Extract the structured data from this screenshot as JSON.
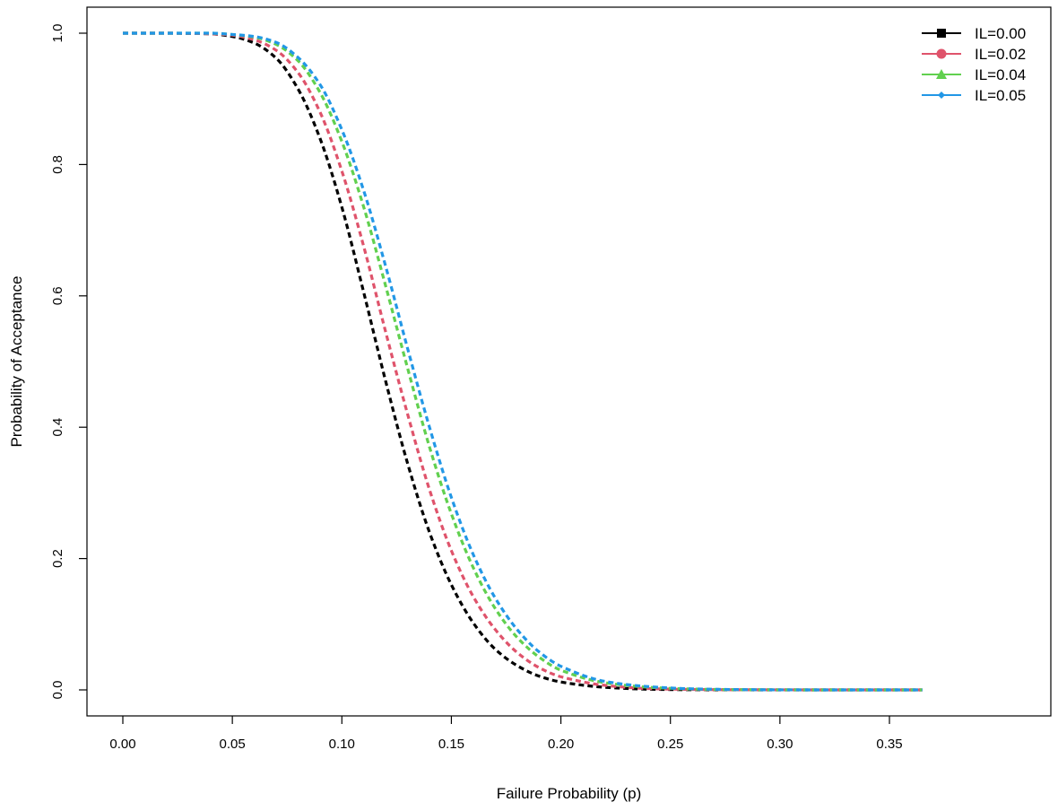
{
  "chart_data": {
    "type": "line",
    "title": "",
    "xlabel": "Failure Probability (p)",
    "ylabel": "Probability of Acceptance",
    "xlim": [
      0,
      0.365
    ],
    "ylim": [
      0,
      1.0
    ],
    "x_ticks": [
      0.0,
      0.05,
      0.1,
      0.15,
      0.2,
      0.25,
      0.3,
      0.35
    ],
    "x_tick_labels": [
      "0.00",
      "0.05",
      "0.10",
      "0.15",
      "0.20",
      "0.25",
      "0.30",
      "0.35"
    ],
    "y_ticks": [
      0.0,
      0.2,
      0.4,
      0.6,
      0.8,
      1.0
    ],
    "y_tick_labels": [
      "0.0",
      "0.2",
      "0.4",
      "0.6",
      "0.8",
      "1.0"
    ],
    "grid": false,
    "legend_position": "top-right",
    "line_style": "dashed",
    "x": [
      0.0,
      0.02,
      0.04,
      0.05,
      0.06,
      0.07,
      0.08,
      0.09,
      0.1,
      0.11,
      0.12,
      0.13,
      0.14,
      0.15,
      0.16,
      0.17,
      0.18,
      0.19,
      0.2,
      0.22,
      0.24,
      0.26,
      0.28,
      0.3,
      0.33,
      0.365
    ],
    "series": [
      {
        "name": "IL=0.00",
        "color": "#000000",
        "marker": "square",
        "values": [
          1.0,
          1.0,
          0.999,
          0.995,
          0.985,
          0.962,
          0.915,
          0.84,
          0.735,
          0.605,
          0.47,
          0.345,
          0.24,
          0.16,
          0.102,
          0.062,
          0.037,
          0.021,
          0.012,
          0.004,
          0.001,
          0.0003,
          0.0001,
          0.0,
          0.0,
          0.0
        ]
      },
      {
        "name": "IL=0.02",
        "color": "#df536b",
        "marker": "circle",
        "values": [
          1.0,
          1.0,
          0.999,
          0.997,
          0.99,
          0.974,
          0.94,
          0.88,
          0.79,
          0.675,
          0.545,
          0.42,
          0.305,
          0.212,
          0.142,
          0.092,
          0.057,
          0.034,
          0.02,
          0.007,
          0.002,
          0.0007,
          0.0002,
          0.0001,
          0.0,
          0.0
        ]
      },
      {
        "name": "IL=0.04",
        "color": "#61d04f",
        "marker": "triangle",
        "values": [
          1.0,
          1.0,
          1.0,
          0.998,
          0.994,
          0.983,
          0.958,
          0.91,
          0.835,
          0.735,
          0.615,
          0.49,
          0.37,
          0.268,
          0.186,
          0.124,
          0.08,
          0.05,
          0.03,
          0.011,
          0.004,
          0.0013,
          0.0004,
          0.0001,
          0.0,
          0.0
        ]
      },
      {
        "name": "IL=0.05",
        "color": "#2297e6",
        "marker": "diamond",
        "values": [
          1.0,
          1.0,
          1.0,
          0.998,
          0.995,
          0.986,
          0.963,
          0.922,
          0.853,
          0.76,
          0.645,
          0.52,
          0.4,
          0.293,
          0.206,
          0.14,
          0.092,
          0.058,
          0.036,
          0.013,
          0.005,
          0.0016,
          0.0005,
          0.0001,
          0.0,
          0.0
        ]
      }
    ]
  }
}
